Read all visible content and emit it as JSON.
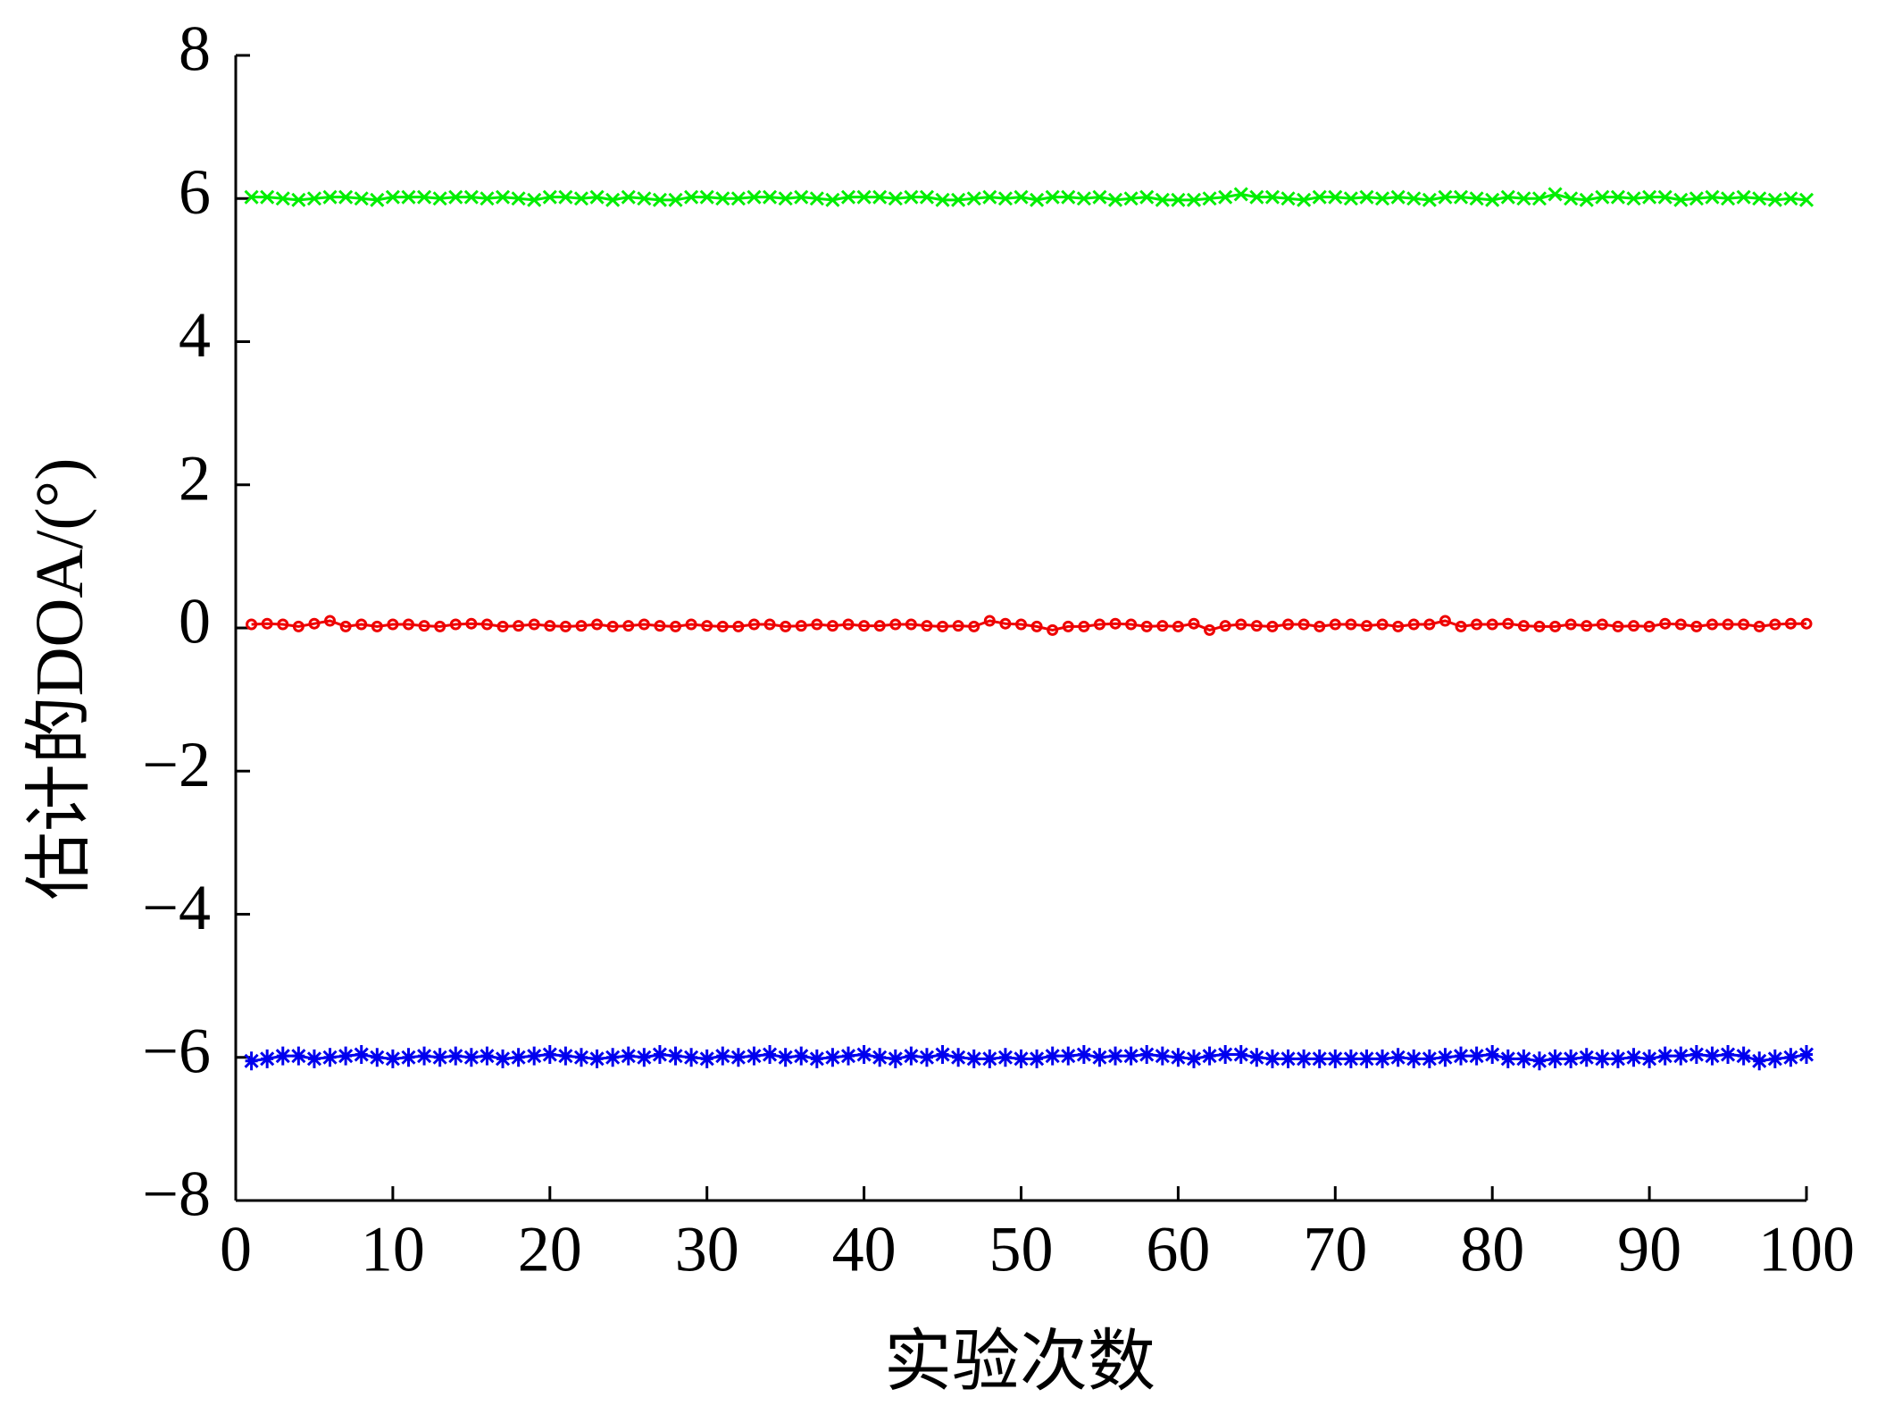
{
  "chart_data": {
    "type": "line",
    "x_label": "实验次数",
    "y_label": "估计的DOA/(°)",
    "xlim": [
      0,
      100
    ],
    "ylim": [
      -8,
      8
    ],
    "xticks": [
      0,
      10,
      20,
      30,
      40,
      50,
      60,
      70,
      80,
      90,
      100
    ],
    "yticks": [
      {
        "value": -8,
        "label": "−8"
      },
      {
        "value": -6,
        "label": "−6"
      },
      {
        "value": -4,
        "label": "−4"
      },
      {
        "value": -2,
        "label": "−2"
      },
      0,
      2,
      4,
      6,
      8
    ],
    "grid": false,
    "x": [
      1,
      2,
      3,
      4,
      5,
      6,
      7,
      8,
      9,
      10,
      11,
      12,
      13,
      14,
      15,
      16,
      17,
      18,
      19,
      20,
      21,
      22,
      23,
      24,
      25,
      26,
      27,
      28,
      29,
      30,
      31,
      32,
      33,
      34,
      35,
      36,
      37,
      38,
      39,
      40,
      41,
      42,
      43,
      44,
      45,
      46,
      47,
      48,
      49,
      50,
      51,
      52,
      53,
      54,
      55,
      56,
      57,
      58,
      59,
      60,
      61,
      62,
      63,
      64,
      65,
      66,
      67,
      68,
      69,
      70,
      71,
      72,
      73,
      74,
      75,
      76,
      77,
      78,
      79,
      80,
      81,
      82,
      83,
      84,
      85,
      86,
      87,
      88,
      89,
      90,
      91,
      92,
      93,
      94,
      95,
      96,
      97,
      98,
      99,
      100
    ],
    "series": [
      {
        "color": "#00ee00",
        "marker": "x",
        "values": [
          6.02,
          6.02,
          6.0,
          5.98,
          6.0,
          6.02,
          6.02,
          6.0,
          5.98,
          6.02,
          6.02,
          6.02,
          6.0,
          6.02,
          6.02,
          6.0,
          6.02,
          6.0,
          5.98,
          6.02,
          6.02,
          6.0,
          6.02,
          5.98,
          6.02,
          6.0,
          5.98,
          5.98,
          6.02,
          6.02,
          6.0,
          6.0,
          6.02,
          6.02,
          6.0,
          6.02,
          6.0,
          5.98,
          6.02,
          6.02,
          6.02,
          6.0,
          6.02,
          6.02,
          5.98,
          5.98,
          6.0,
          6.02,
          6.0,
          6.02,
          5.98,
          6.02,
          6.02,
          6.0,
          6.02,
          5.98,
          6.0,
          6.02,
          5.98,
          5.98,
          5.98,
          6.0,
          6.02,
          6.06,
          6.02,
          6.02,
          6.0,
          5.98,
          6.02,
          6.02,
          6.0,
          6.02,
          6.0,
          6.02,
          6.0,
          5.98,
          6.02,
          6.02,
          6.0,
          5.98,
          6.02,
          6.0,
          6.0,
          6.06,
          6.0,
          5.98,
          6.02,
          6.02,
          6.0,
          6.02,
          6.02,
          5.98,
          6.0,
          6.02,
          6.0,
          6.02,
          6.0,
          5.98,
          6.0,
          5.98
        ]
      },
      {
        "color": "#ee0000",
        "marker": "o",
        "values": [
          0.05,
          0.06,
          0.05,
          0.02,
          0.06,
          0.1,
          0.02,
          0.05,
          0.02,
          0.05,
          0.05,
          0.03,
          0.02,
          0.05,
          0.06,
          0.05,
          0.02,
          0.03,
          0.05,
          0.03,
          0.02,
          0.03,
          0.05,
          0.02,
          0.03,
          0.05,
          0.03,
          0.02,
          0.05,
          0.03,
          0.02,
          0.02,
          0.05,
          0.05,
          0.02,
          0.03,
          0.05,
          0.03,
          0.05,
          0.03,
          0.03,
          0.05,
          0.05,
          0.03,
          0.02,
          0.03,
          0.02,
          0.1,
          0.06,
          0.05,
          0.02,
          -0.03,
          0.02,
          0.02,
          0.05,
          0.06,
          0.05,
          0.02,
          0.03,
          0.02,
          0.06,
          -0.03,
          0.03,
          0.05,
          0.03,
          0.02,
          0.05,
          0.05,
          0.02,
          0.05,
          0.05,
          0.03,
          0.05,
          0.02,
          0.05,
          0.05,
          0.1,
          0.02,
          0.05,
          0.05,
          0.06,
          0.03,
          0.02,
          0.02,
          0.05,
          0.03,
          0.05,
          0.02,
          0.03,
          0.02,
          0.06,
          0.05,
          0.02,
          0.05,
          0.05,
          0.05,
          0.02,
          0.05,
          0.06,
          0.06
        ]
      },
      {
        "color": "#0000ee",
        "marker": "*",
        "values": [
          -6.05,
          -6.02,
          -5.98,
          -5.98,
          -6.02,
          -6.0,
          -5.98,
          -5.96,
          -6.0,
          -6.02,
          -6.0,
          -5.98,
          -6.0,
          -5.98,
          -6.0,
          -5.98,
          -6.02,
          -6.0,
          -5.98,
          -5.96,
          -5.98,
          -6.0,
          -6.02,
          -6.0,
          -5.98,
          -6.0,
          -5.96,
          -5.98,
          -6.0,
          -6.02,
          -5.98,
          -6.0,
          -5.98,
          -5.96,
          -6.0,
          -5.98,
          -6.02,
          -6.0,
          -5.98,
          -5.96,
          -6.0,
          -6.02,
          -5.98,
          -6.0,
          -5.96,
          -6.0,
          -6.02,
          -6.02,
          -6.0,
          -6.02,
          -6.02,
          -5.98,
          -5.98,
          -5.96,
          -6.0,
          -5.98,
          -5.98,
          -5.96,
          -5.98,
          -6.0,
          -6.02,
          -5.98,
          -5.96,
          -5.96,
          -6.0,
          -6.02,
          -6.02,
          -6.02,
          -6.02,
          -6.02,
          -6.02,
          -6.02,
          -6.02,
          -6.0,
          -6.02,
          -6.02,
          -6.0,
          -5.98,
          -5.98,
          -5.96,
          -6.02,
          -6.02,
          -6.05,
          -6.02,
          -6.02,
          -6.0,
          -6.02,
          -6.02,
          -6.0,
          -6.02,
          -5.98,
          -5.98,
          -5.96,
          -5.98,
          -5.96,
          -5.98,
          -6.05,
          -6.02,
          -6.0,
          -5.96
        ]
      }
    ]
  }
}
